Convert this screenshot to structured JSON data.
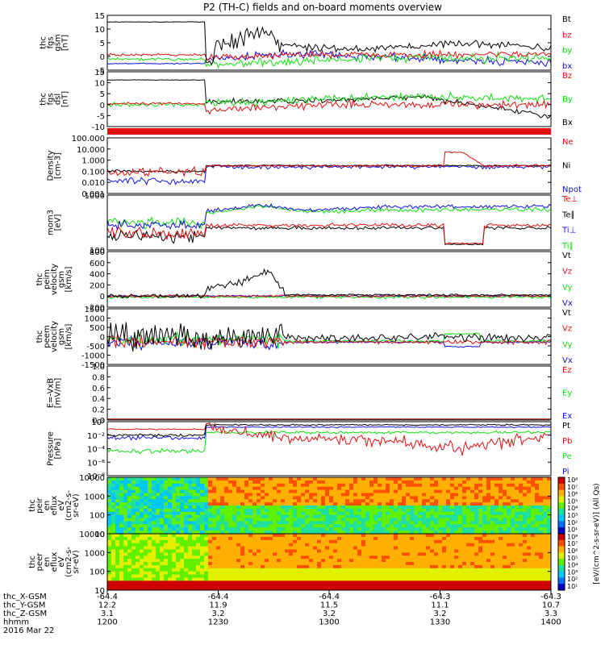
{
  "title": "P2 (TH-C) fields and on-board moments overview",
  "colors": {
    "black": "#000000",
    "red": "#e01010",
    "green": "#10e010",
    "blue": "#1010e0"
  },
  "chart_data": [
    {
      "id": "fgs_gsm",
      "type": "line",
      "ylabel": [
        "thc",
        "fgs",
        "gsm",
        "[nT]"
      ],
      "ylim": [
        -5,
        15
      ],
      "ticks": [
        "15",
        "10",
        "5",
        "0",
        "-5"
      ],
      "series": [
        {
          "name": "Bt",
          "color": "black"
        },
        {
          "name": "bz",
          "color": "red"
        },
        {
          "name": "by",
          "color": "green"
        },
        {
          "name": "bx",
          "color": "blue"
        }
      ]
    },
    {
      "id": "fgs_dsl",
      "type": "line",
      "ylabel": [
        "thc",
        "fgs",
        "dsl",
        "[nT]"
      ],
      "ylim": [
        -15,
        15
      ],
      "ticks": [
        "15",
        "10",
        "5",
        "0",
        "-5",
        "-10"
      ],
      "series": [
        {
          "name": "Bz",
          "color": "red"
        },
        {
          "name": "By",
          "color": "green"
        },
        {
          "name": "Bx",
          "color": "black"
        }
      ]
    },
    {
      "id": "flag_bar",
      "type": "bar",
      "color": "red"
    },
    {
      "id": "density",
      "type": "line",
      "ylabel": [
        "Density",
        "[cm-3]"
      ],
      "scale": "log",
      "ticks": [
        "100.000",
        "10.000",
        "1.000",
        "0.100",
        "0.010",
        "0.001"
      ],
      "series": [
        {
          "name": "Ne",
          "color": "red"
        },
        {
          "name": "Ni",
          "color": "black"
        },
        {
          "name": "Npot",
          "color": "blue"
        }
      ]
    },
    {
      "id": "temperature",
      "type": "line",
      "ylabel": [
        "mom3",
        "[eV]"
      ],
      "scale": "log",
      "ticks": [
        "1000",
        "100"
      ],
      "series": [
        {
          "name": "Te⊥",
          "color": "red"
        },
        {
          "name": "Te∥",
          "color": "black"
        },
        {
          "name": "Ti⊥",
          "color": "blue"
        },
        {
          "name": "Ti∥",
          "color": "green"
        }
      ]
    },
    {
      "id": "peim_velocity",
      "type": "line",
      "ylabel": [
        "thc",
        "peim",
        "velocity",
        "gsm",
        "[km/s]"
      ],
      "ylim": [
        -200,
        800
      ],
      "ticks": [
        "800",
        "600",
        "400",
        "200",
        "0",
        "-200"
      ],
      "series": [
        {
          "name": "Vt",
          "color": "black"
        },
        {
          "name": "Vz",
          "color": "red"
        },
        {
          "name": "Vy",
          "color": "green"
        },
        {
          "name": "Vx",
          "color": "blue"
        }
      ]
    },
    {
      "id": "peem_velocity",
      "type": "line",
      "ylabel": [
        "thc",
        "peem",
        "velocity",
        "gsm",
        "[km/s]"
      ],
      "ylim": [
        -1500,
        1500
      ],
      "ticks": [
        "1500",
        "1000",
        "500",
        "0",
        "-500",
        "-1000",
        "-1500"
      ],
      "series": [
        {
          "name": "Vt",
          "color": "black"
        },
        {
          "name": "Vz",
          "color": "red"
        },
        {
          "name": "Vy",
          "color": "green"
        },
        {
          "name": "Vx",
          "color": "blue"
        }
      ]
    },
    {
      "id": "e_field",
      "type": "line",
      "ylabel": [
        "E=-VxB",
        "[mV/m]"
      ],
      "ylim": [
        0,
        1
      ],
      "ticks": [
        "1.0",
        "0.8",
        "0.6",
        "0.4",
        "0.2",
        "0.0"
      ],
      "series": [
        {
          "name": "Ez",
          "color": "red"
        },
        {
          "name": "Ey",
          "color": "green"
        },
        {
          "name": "Ex",
          "color": "blue"
        }
      ]
    },
    {
      "id": "pressure",
      "type": "line",
      "ylabel": [
        "Pressure",
        "[nPa]"
      ],
      "scale": "log",
      "ticks": [
        "10⁰",
        "10⁻²",
        "10⁻⁴",
        "10⁻⁶",
        "10⁻⁸"
      ],
      "series": [
        {
          "name": "Pt",
          "color": "black"
        },
        {
          "name": "Pb",
          "color": "red"
        },
        {
          "name": "Pe",
          "color": "green"
        },
        {
          "name": "Pi",
          "color": "blue"
        }
      ]
    },
    {
      "id": "peir_spec",
      "type": "heatmap",
      "ylabel": [
        "thc",
        "peir",
        "en",
        "eflux",
        "eV",
        "(cm2-s-",
        "sr-eV)"
      ],
      "scale": "log",
      "ticks": [
        "10000",
        "1000",
        "100",
        "10"
      ]
    },
    {
      "id": "peer_spec",
      "type": "heatmap",
      "ylabel": [
        "thc",
        "peer",
        "en",
        "eflux",
        "eV",
        "(cm2-s-",
        "sr-eV)"
      ],
      "scale": "log",
      "ticks": [
        "10000",
        "1000",
        "100",
        "10"
      ]
    }
  ],
  "colorbar": {
    "label": "[eV/(cm^2-s-sr-eV)] (All Qs)",
    "ticks": [
      "10⁸",
      "10⁷",
      "10⁶",
      "10⁵",
      "10⁴",
      "10³",
      "10²",
      "10¹",
      "10⁸",
      "10⁷",
      "10⁶",
      "10⁵",
      "10⁴",
      "10³",
      "10²",
      "10¹"
    ]
  },
  "time_axis": {
    "row_labels": [
      "thc_X-GSM",
      "thc_Y-GSM",
      "thc_Z-GSM",
      "hhmm",
      "2016 Mar 22"
    ],
    "columns": [
      [
        "-64.4",
        "12.2",
        "3.1",
        "1200"
      ],
      [
        "-64.4",
        "11.9",
        "3.2",
        "1230"
      ],
      [
        "-64.4",
        "11.5",
        "3.2",
        "1300"
      ],
      [
        "-64.3",
        "11.1",
        "3.2",
        "1330"
      ],
      [
        "-64.3",
        "10.7",
        "3.3",
        "1400"
      ]
    ]
  }
}
